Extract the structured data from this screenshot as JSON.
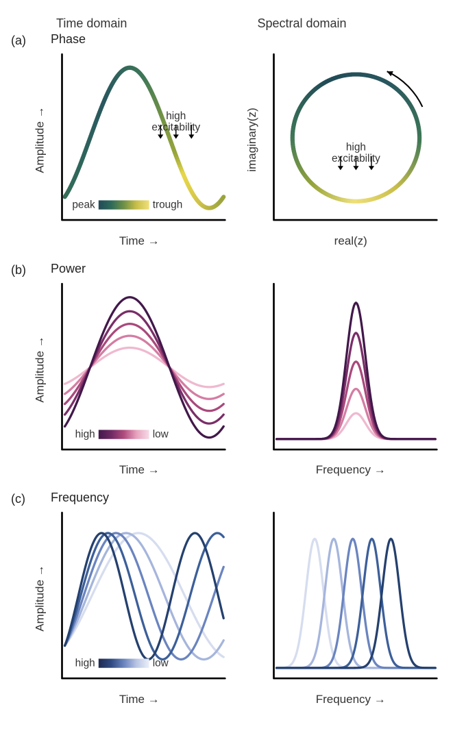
{
  "columns": {
    "left": "Time domain",
    "right": "Spectral domain"
  },
  "rows": {
    "a": {
      "label": "(a)",
      "subtitle": "Phase",
      "left": {
        "ylabel": "Amplitude →",
        "xlabel": "Time →",
        "annotation": "high\nexcitability",
        "legend_left": "peak",
        "legend_right": "trough",
        "gradient_stops": [
          {
            "t": 0.0,
            "c": "#336f58"
          },
          {
            "t": 0.25,
            "c": "#29575f"
          },
          {
            "t": 0.5,
            "c": "#3d7757"
          },
          {
            "t": 0.7,
            "c": "#98a63a"
          },
          {
            "t": 0.75,
            "c": "#e8d74a"
          },
          {
            "t": 0.85,
            "c": "#d0c34a"
          },
          {
            "t": 1.0,
            "c": "#9aa33d"
          }
        ],
        "legend_gradient": [
          "#214b57",
          "#2e6a59",
          "#6e9046",
          "#c9be4a",
          "#efe07a"
        ],
        "line_width": 6
      },
      "right": {
        "ylabel": "imaginary(z)",
        "xlabel": "real(z)",
        "annotation": "high\nexcitability",
        "gradient_stops_angle": [
          {
            "a": 0,
            "c": "#3d7757"
          },
          {
            "a": 60,
            "c": "#29575f"
          },
          {
            "a": 120,
            "c": "#214b57"
          },
          {
            "a": 180,
            "c": "#3d7757"
          },
          {
            "a": 230,
            "c": "#98a63a"
          },
          {
            "a": 270,
            "c": "#efe07a"
          },
          {
            "a": 310,
            "c": "#c9be4a"
          },
          {
            "a": 360,
            "c": "#3d7757"
          }
        ],
        "circle_r": 0.8,
        "line_width": 6,
        "rotation_arrow": true
      }
    },
    "b": {
      "label": "(b)",
      "subtitle": "Power",
      "left": {
        "ylabel": "Amplitude →",
        "xlabel": "Time →",
        "legend_left": "high",
        "legend_right": "low",
        "legend_gradient": [
          "#42184a",
          "#6f2a63",
          "#b04b7e",
          "#e7a2bd",
          "#f6dbe7"
        ],
        "series": [
          {
            "amp": 1.0,
            "color": "#42184a",
            "w": 3.2
          },
          {
            "amp": 0.8,
            "color": "#7a2e68",
            "w": 3.2
          },
          {
            "amp": 0.62,
            "color": "#a9497c",
            "w": 3.2
          },
          {
            "amp": 0.45,
            "color": "#d47da3",
            "w": 3.2
          },
          {
            "amp": 0.28,
            "color": "#efb9cf",
            "w": 3.2
          }
        ]
      },
      "right": {
        "xlabel": "Frequency →",
        "center": 0.5,
        "sigma": 0.06,
        "series": [
          {
            "h": 0.95,
            "color": "#42184a",
            "w": 3.2
          },
          {
            "h": 0.74,
            "color": "#7a2e68",
            "w": 3.2
          },
          {
            "h": 0.54,
            "color": "#a9497c",
            "w": 3.2
          },
          {
            "h": 0.35,
            "color": "#d47da3",
            "w": 3.2
          },
          {
            "h": 0.18,
            "color": "#efb9cf",
            "w": 3.2
          }
        ]
      }
    },
    "c": {
      "label": "(c)",
      "subtitle": "Frequency",
      "left": {
        "ylabel": "Amplitude →",
        "xlabel": "Time →",
        "legend_left": "high",
        "legend_right": "low",
        "legend_gradient": [
          "#1e2a52",
          "#2f4a82",
          "#6a84bf",
          "#b8c5e4",
          "#eceff8"
        ],
        "amp": 0.9,
        "phase_start": -1.05,
        "series": [
          {
            "periods": 1.7,
            "color": "#24406e",
            "w": 3.2
          },
          {
            "periods": 1.45,
            "color": "#3c5f99",
            "w": 3.2
          },
          {
            "periods": 1.22,
            "color": "#6a84bf",
            "w": 3.2
          },
          {
            "periods": 1.02,
            "color": "#a5b5dc",
            "w": 3.2
          },
          {
            "periods": 0.85,
            "color": "#d6ddef",
            "w": 3.2
          }
        ]
      },
      "right": {
        "xlabel": "Frequency →",
        "sigma": 0.055,
        "height": 0.9,
        "series": [
          {
            "center": 0.72,
            "color": "#24406e",
            "w": 3.2
          },
          {
            "center": 0.6,
            "color": "#3c5f99",
            "w": 3.2
          },
          {
            "center": 0.48,
            "color": "#6a84bf",
            "w": 3.2
          },
          {
            "center": 0.36,
            "color": "#a5b5dc",
            "w": 3.2
          },
          {
            "center": 0.24,
            "color": "#d6ddef",
            "w": 3.2
          }
        ]
      }
    }
  },
  "axes_color": "#000000",
  "bg": "#ffffff"
}
